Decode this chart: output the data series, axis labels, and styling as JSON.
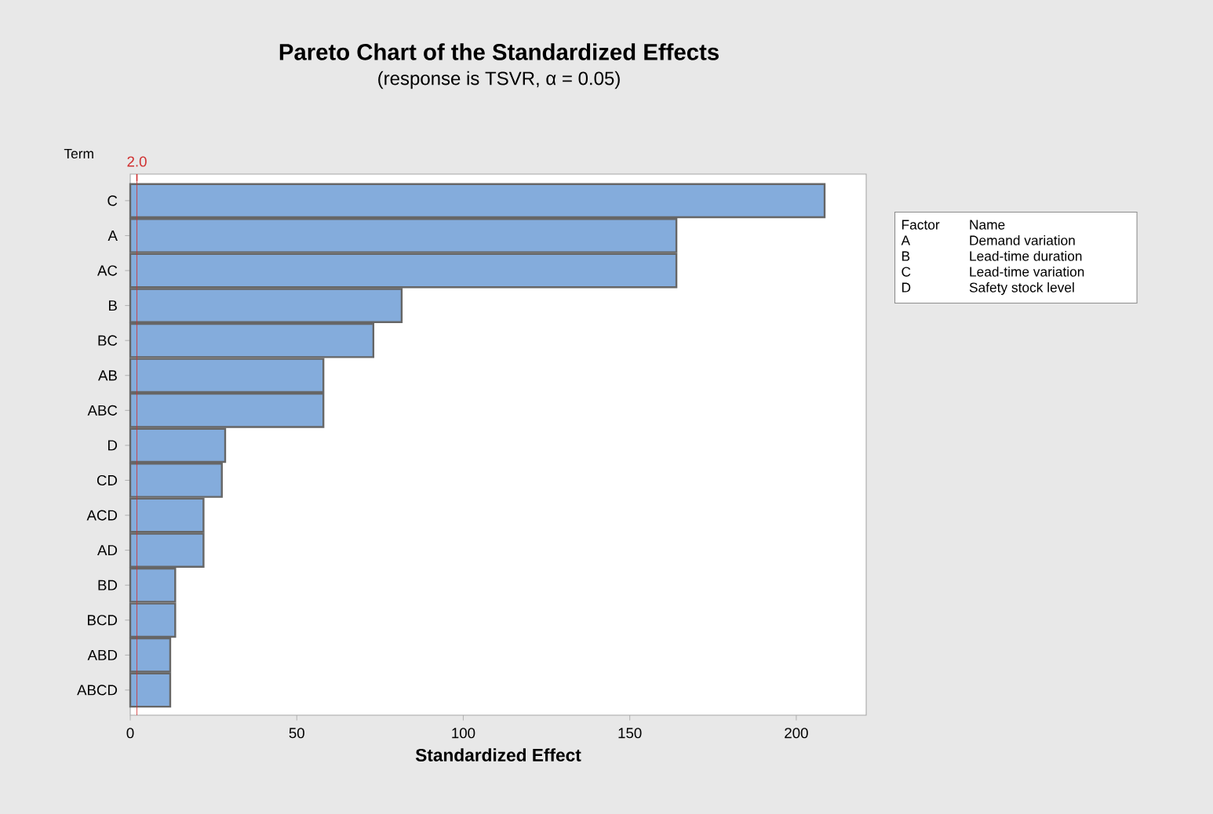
{
  "chart_data": {
    "type": "bar",
    "orientation": "horizontal",
    "title": "Pareto Chart of the Standardized Effects",
    "subtitle": "(response is TSVR, α = 0.05)",
    "xlabel": "Standardized Effect",
    "ylabel": "Term",
    "categories": [
      "C",
      "A",
      "AC",
      "B",
      "BC",
      "AB",
      "ABC",
      "D",
      "CD",
      "ACD",
      "AD",
      "BD",
      "BCD",
      "ABD",
      "ABCD"
    ],
    "values": [
      208.5,
      164,
      164,
      81.5,
      73,
      58,
      58,
      28.5,
      27.5,
      22,
      22,
      13.5,
      13.5,
      12,
      12
    ],
    "color": "#84acdc",
    "xlim": [
      0,
      221
    ],
    "xticks": [
      0,
      50,
      100,
      150,
      200
    ],
    "grid": false,
    "ref_lines": [
      {
        "axis": "x",
        "value": 2.0,
        "label": "2.0",
        "color": "#d03030"
      }
    ],
    "annotations": [
      "Factor",
      "Name",
      "A",
      "Demand variation",
      "B",
      "Lead-time duration",
      "C",
      "Lead-time variation",
      "D",
      "Safety stock level"
    ]
  }
}
